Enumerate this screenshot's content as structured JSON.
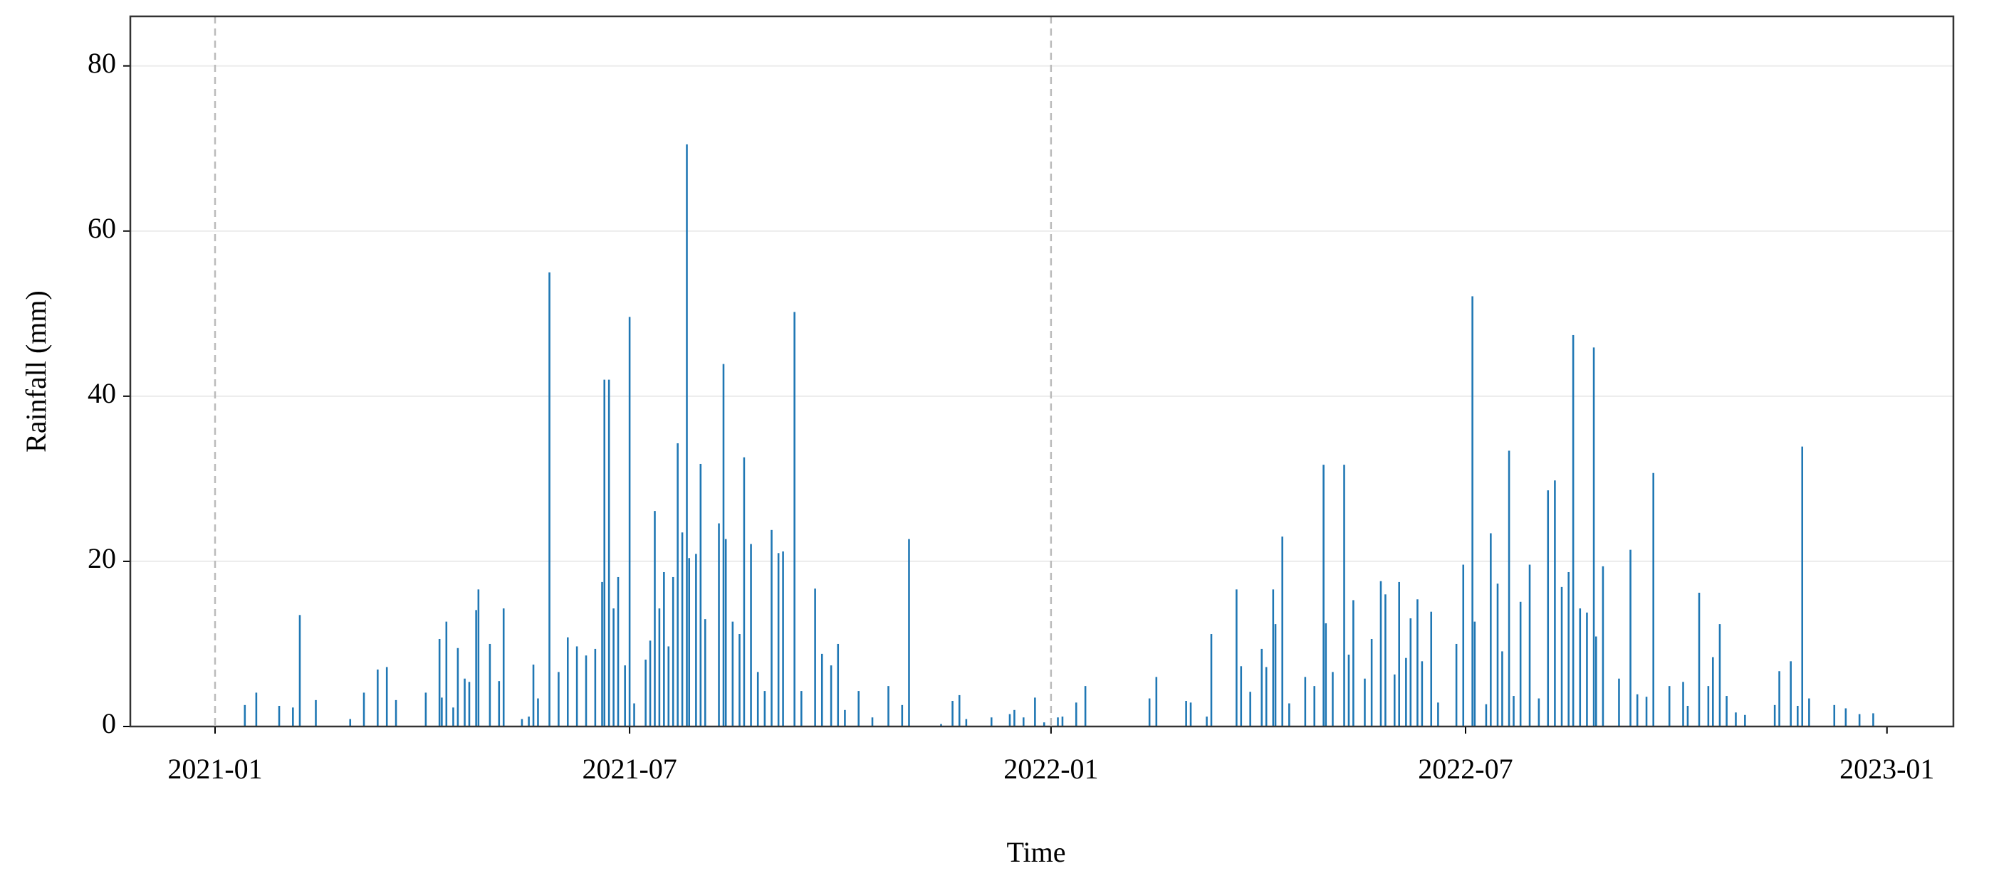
{
  "chart_data": {
    "type": "bar",
    "xlabel": "Time",
    "ylabel": "Rainfall (mm)",
    "color": "#1f77b4",
    "xlim": [
      "2020-11-25",
      "2023-01-30"
    ],
    "ylim": [
      0,
      86
    ],
    "yticks": [
      0,
      20,
      40,
      60,
      80
    ],
    "xticks": [
      {
        "value": "2021-01-01",
        "label": "2021-01"
      },
      {
        "value": "2021-07-01",
        "label": "2021-07"
      },
      {
        "value": "2022-01-01",
        "label": "2022-01"
      },
      {
        "value": "2022-07-01",
        "label": "2022-07"
      },
      {
        "value": "2023-01-01",
        "label": "2023-01"
      }
    ],
    "grid": true,
    "reference_lines": [
      "2021-01-01",
      "2022-01-01"
    ],
    "x": [
      "2021-01-14",
      "2021-01-19",
      "2021-01-29",
      "2021-02-04",
      "2021-02-07",
      "2021-02-14",
      "2021-03-01",
      "2021-03-07",
      "2021-03-13",
      "2021-03-17",
      "2021-03-21",
      "2021-04-03",
      "2021-04-09",
      "2021-04-10",
      "2021-04-12",
      "2021-04-15",
      "2021-04-17",
      "2021-04-20",
      "2021-04-22",
      "2021-04-25",
      "2021-04-26",
      "2021-05-01",
      "2021-05-05",
      "2021-05-07",
      "2021-05-15",
      "2021-05-18",
      "2021-05-20",
      "2021-05-22",
      "2021-05-27",
      "2021-05-31",
      "2021-06-04",
      "2021-06-08",
      "2021-06-12",
      "2021-06-16",
      "2021-06-19",
      "2021-06-20",
      "2021-06-22",
      "2021-06-24",
      "2021-06-26",
      "2021-06-29",
      "2021-07-01",
      "2021-07-03",
      "2021-07-08",
      "2021-07-10",
      "2021-07-12",
      "2021-07-14",
      "2021-07-16",
      "2021-07-18",
      "2021-07-20",
      "2021-07-22",
      "2021-07-24",
      "2021-07-26",
      "2021-07-27",
      "2021-07-30",
      "2021-08-01",
      "2021-08-03",
      "2021-08-09",
      "2021-08-11",
      "2021-08-12",
      "2021-08-15",
      "2021-08-18",
      "2021-08-20",
      "2021-08-23",
      "2021-08-26",
      "2021-08-29",
      "2021-09-01",
      "2021-09-04",
      "2021-09-06",
      "2021-09-11",
      "2021-09-14",
      "2021-09-20",
      "2021-09-23",
      "2021-09-27",
      "2021-09-30",
      "2021-10-03",
      "2021-10-09",
      "2021-10-15",
      "2021-10-22",
      "2021-10-28",
      "2021-10-31",
      "2021-11-14",
      "2021-11-19",
      "2021-11-22",
      "2021-11-25",
      "2021-12-06",
      "2021-12-14",
      "2021-12-16",
      "2021-12-20",
      "2021-12-25",
      "2021-12-29",
      "2022-01-04",
      "2022-01-06",
      "2022-01-12",
      "2022-01-16",
      "2022-02-13",
      "2022-02-16",
      "2022-03-01",
      "2022-03-03",
      "2022-03-10",
      "2022-03-12",
      "2022-03-23",
      "2022-03-25",
      "2022-03-29",
      "2022-04-03",
      "2022-04-05",
      "2022-04-08",
      "2022-04-09",
      "2022-04-12",
      "2022-04-15",
      "2022-04-22",
      "2022-04-26",
      "2022-04-30",
      "2022-05-01",
      "2022-05-04",
      "2022-05-09",
      "2022-05-11",
      "2022-05-13",
      "2022-05-18",
      "2022-05-21",
      "2022-05-25",
      "2022-05-27",
      "2022-05-31",
      "2022-06-02",
      "2022-06-05",
      "2022-06-07",
      "2022-06-10",
      "2022-06-12",
      "2022-06-16",
      "2022-06-19",
      "2022-06-27",
      "2022-06-30",
      "2022-07-04",
      "2022-07-05",
      "2022-07-10",
      "2022-07-12",
      "2022-07-15",
      "2022-07-17",
      "2022-07-20",
      "2022-07-22",
      "2022-07-25",
      "2022-07-29",
      "2022-08-02",
      "2022-08-06",
      "2022-08-09",
      "2022-08-12",
      "2022-08-15",
      "2022-08-17",
      "2022-08-20",
      "2022-08-23",
      "2022-08-26",
      "2022-08-27",
      "2022-08-30",
      "2022-09-06",
      "2022-09-11",
      "2022-09-14",
      "2022-09-18",
      "2022-09-21",
      "2022-09-28",
      "2022-10-04",
      "2022-10-06",
      "2022-10-11",
      "2022-10-15",
      "2022-10-17",
      "2022-10-20",
      "2022-10-23",
      "2022-10-27",
      "2022-10-31",
      "2022-11-13",
      "2022-11-15",
      "2022-11-20",
      "2022-11-23",
      "2022-11-25",
      "2022-11-28",
      "2022-12-09",
      "2022-12-14",
      "2022-12-20",
      "2022-12-26"
    ],
    "values": [
      2.6,
      4.1,
      2.5,
      2.3,
      13.5,
      3.2,
      0.9,
      4.1,
      6.9,
      7.2,
      3.2,
      4.1,
      10.6,
      3.5,
      12.7,
      2.3,
      9.5,
      5.8,
      5.4,
      14.1,
      16.6,
      10,
      5.5,
      14.3,
      0.9,
      1.2,
      7.5,
      3.4,
      55,
      6.6,
      10.8,
      9.7,
      8.6,
      9.4,
      17.5,
      42,
      42,
      14.3,
      18.1,
      7.4,
      49.6,
      2.8,
      8.1,
      10.4,
      26.1,
      14.3,
      18.7,
      9.7,
      18.1,
      34.3,
      23.5,
      70.5,
      20.4,
      20.9,
      31.8,
      13,
      24.6,
      43.9,
      22.7,
      12.7,
      11.2,
      32.6,
      22.1,
      6.6,
      4.3,
      23.8,
      21,
      21.2,
      50.2,
      4.3,
      16.7,
      8.8,
      7.4,
      10,
      2,
      4.3,
      1.1,
      4.9,
      2.6,
      22.7,
      0.3,
      3.1,
      3.8,
      0.9,
      1.1,
      1.5,
      2,
      1.1,
      3.5,
      0.5,
      1.1,
      1.2,
      2.9,
      4.9,
      3.4,
      6,
      3.1,
      2.9,
      1.2,
      11.2,
      16.6,
      7.3,
      4.2,
      9.4,
      7.2,
      16.6,
      12.4,
      23,
      2.8,
      6,
      4.9,
      31.7,
      12.5,
      6.6,
      31.7,
      8.7,
      15.3,
      5.8,
      10.6,
      17.6,
      16,
      6.3,
      17.5,
      8.3,
      13.1,
      15.4,
      7.9,
      13.9,
      2.9,
      10,
      19.6,
      52.1,
      12.7,
      2.7,
      23.4,
      17.3,
      9.1,
      33.4,
      3.7,
      15.1,
      19.6,
      3.4,
      28.6,
      29.8,
      16.9,
      18.7,
      47.4,
      14.3,
      13.8,
      45.9,
      10.9,
      19.4,
      5.8,
      21.4,
      3.9,
      3.6,
      30.7,
      4.9,
      5.4,
      2.5,
      16.2,
      4.9,
      8.4,
      12.4,
      3.7,
      1.7,
      1.4,
      2.6,
      6.7,
      7.9,
      2.5,
      33.9,
      3.4,
      2.6,
      2.2,
      1.5,
      1.6
    ]
  }
}
